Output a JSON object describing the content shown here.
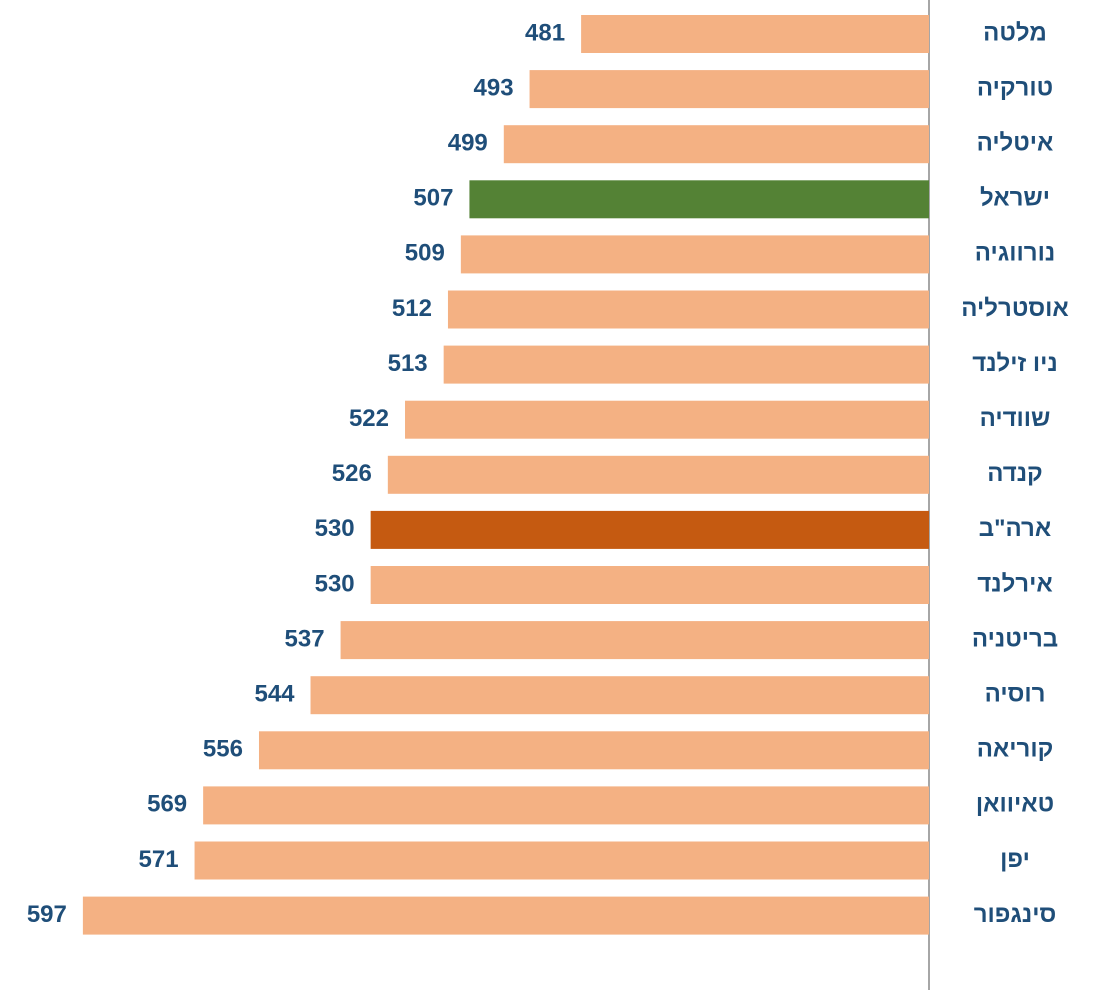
{
  "chart_data": {
    "type": "bar",
    "orientation": "horizontal",
    "categories": [
      "מלטה",
      "טורקיה",
      "איטליה",
      "ישראל",
      "נורווגיה",
      "אוסטרליה",
      "ניו זילנד",
      "שוודיה",
      "קנדה",
      "ארה\"ב",
      "אירלנד",
      "בריטניה",
      "רוסיה",
      "קוריאה",
      "טאיוואן",
      "יפן",
      "סינגפור"
    ],
    "values": [
      481,
      493,
      499,
      507,
      509,
      512,
      513,
      522,
      526,
      530,
      530,
      537,
      544,
      556,
      569,
      571,
      597
    ],
    "colors": [
      "#f4b183",
      "#f4b183",
      "#f4b183",
      "#548235",
      "#f4b183",
      "#f4b183",
      "#f4b183",
      "#f4b183",
      "#f4b183",
      "#c55a11",
      "#f4b183",
      "#f4b183",
      "#f4b183",
      "#f4b183",
      "#f4b183",
      "#f4b183",
      "#f4b183"
    ],
    "xlim": [
      400,
      600
    ]
  }
}
